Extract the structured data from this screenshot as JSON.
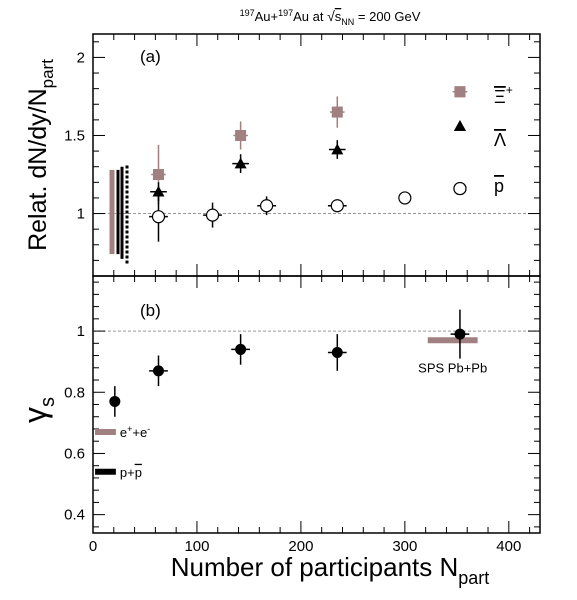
{
  "figure": {
    "title_parts": [
      "197",
      "Au+",
      "197",
      "Au at ",
      "s",
      "NN",
      " = 200 GeV"
    ],
    "xlabel_main": "Number of participants N",
    "xlabel_sub": "part",
    "x_ticks": [
      "0",
      "100",
      "200",
      "300",
      "400"
    ]
  },
  "chart_data": [
    {
      "type": "scatter",
      "panel_label": "(a)",
      "ylabel_main": "Relat. dN/dy/N",
      "ylabel_sub": "part",
      "xlim": [
        0,
        430
      ],
      "ylim": [
        0.6,
        2.15
      ],
      "y_ticks": [
        "1",
        "1.5",
        "2"
      ],
      "reference_line": 1.0,
      "series": [
        {
          "legend_main": "Ξ",
          "legend_sup": "+",
          "marker": "square",
          "color": "#a08080",
          "points": [
            {
              "x": 63,
              "y": 1.25,
              "yerr": 0.19,
              "xerr": 7
            },
            {
              "x": 142,
              "y": 1.5,
              "yerr": 0.09,
              "xerr": 7
            },
            {
              "x": 235,
              "y": 1.65,
              "yerr": 0.1,
              "xerr": 7
            },
            {
              "x": 353,
              "y": 1.78,
              "yerr": 0.03,
              "xerr": 7
            }
          ]
        },
        {
          "legend_main": "Λ",
          "marker": "triangle",
          "color": "#000000",
          "points": [
            {
              "x": 63,
              "y": 1.14,
              "yerr": 0.06,
              "xerr": 8
            },
            {
              "x": 142,
              "y": 1.32,
              "yerr": 0.06,
              "xerr": 8
            },
            {
              "x": 235,
              "y": 1.41,
              "yerr": 0.06,
              "xerr": 8
            },
            {
              "x": 353,
              "y": 1.56,
              "yerr": 0.0,
              "xerr": 0
            }
          ]
        },
        {
          "legend_main": "p",
          "marker": "open-circle",
          "color": "#000000",
          "points": [
            {
              "x": 63,
              "y": 0.98,
              "yerr": 0.16,
              "xerr": 9
            },
            {
              "x": 115,
              "y": 0.99,
              "yerr": 0.08,
              "xerr": 9
            },
            {
              "x": 167,
              "y": 1.05,
              "yerr": 0.06,
              "xerr": 9
            },
            {
              "x": 235,
              "y": 1.05,
              "yerr": 0.03,
              "xerr": 9
            },
            {
              "x": 300,
              "y": 1.1,
              "yerr": 0.0,
              "xerr": 0
            },
            {
              "x": 353,
              "y": 1.16,
              "yerr": 0.0,
              "xerr": 0
            }
          ]
        }
      ],
      "systematic_bands": [
        {
          "style": "solid",
          "color": "#a08080",
          "ymin": 0.74,
          "ymax": 1.28
        },
        {
          "style": "solid",
          "color": "#000000",
          "ymin": 0.74,
          "ymax": 1.28
        },
        {
          "style": "solid",
          "color": "#000000",
          "ymin": 0.71,
          "ymax": 1.3
        },
        {
          "style": "dashed",
          "color": "#000000",
          "ymin": 0.68,
          "ymax": 1.32
        }
      ]
    },
    {
      "type": "scatter",
      "panel_label": "(b)",
      "ylabel_main": "γ",
      "ylabel_sub": "s",
      "xlim": [
        0,
        430
      ],
      "ylim": [
        0.34,
        1.18
      ],
      "y_ticks": [
        "0.4",
        "0.6",
        "0.8",
        "1"
      ],
      "reference_line": 1.0,
      "series": [
        {
          "marker": "filled-circle",
          "color": "#000000",
          "points": [
            {
              "x": 21,
              "y": 0.77,
              "yerr": 0.05,
              "xerr": 5
            },
            {
              "x": 63,
              "y": 0.87,
              "yerr": 0.05,
              "xerr": 9
            },
            {
              "x": 142,
              "y": 0.94,
              "yerr": 0.05,
              "xerr": 9
            },
            {
              "x": 235,
              "y": 0.93,
              "yerr": 0.06,
              "xerr": 9
            },
            {
              "x": 353,
              "y": 0.99,
              "yerr": 0.08,
              "xerr": 9
            }
          ]
        }
      ],
      "reference_bands": [
        {
          "label": "SPS Pb+Pb",
          "color": "#a08080",
          "x0": 322,
          "x1": 370,
          "y": 0.97
        },
        {
          "label_parts": [
            "e",
            "+",
            "+e",
            "-"
          ],
          "color": "#a08080",
          "x0": 2,
          "x1": 22,
          "y": 0.67
        },
        {
          "label_parts": [
            "p+",
            "p"
          ],
          "color": "#000000",
          "x0": 2,
          "x1": 22,
          "y": 0.54
        }
      ]
    }
  ]
}
